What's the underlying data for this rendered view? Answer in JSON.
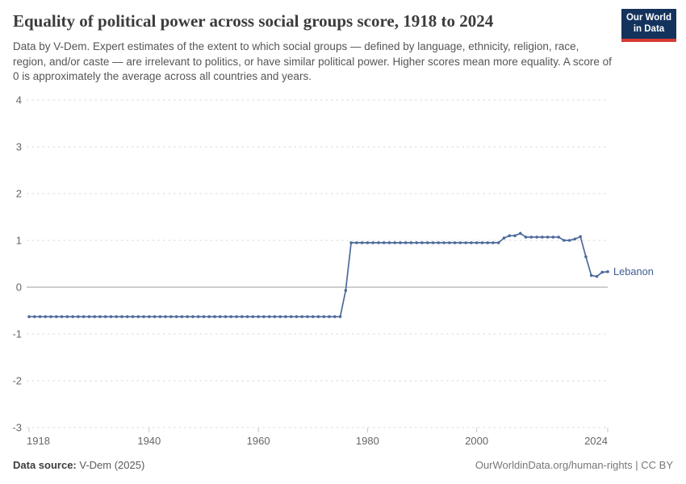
{
  "header": {
    "title": "Equality of political power across social groups score, 1918 to 2024",
    "subtitle": "Data by V-Dem. Expert estimates of the extent to which social groups — defined by language, ethnicity, religion, race, region, and/or caste — are irrelevant to politics, or have similar political power. Higher scores mean more equality. A score of 0 is approximately the average across all countries and years."
  },
  "logo": {
    "line1": "Our World",
    "line2": "in Data",
    "bg_color": "#14335c",
    "bar_color": "#d73b33"
  },
  "chart_data": {
    "type": "line",
    "title": "Equality of political power across social groups score, 1918 to 2024",
    "xlabel": "",
    "ylabel": "",
    "x_range": [
      1918,
      2024
    ],
    "ylim": [
      -3,
      4
    ],
    "y_ticks": [
      4,
      3,
      2,
      1,
      0,
      -1,
      -2,
      -3
    ],
    "x_ticks": [
      1918,
      1940,
      1960,
      1980,
      2000,
      2024
    ],
    "grid": "horizontal dashed, solid zero line",
    "legend_position": "end-of-line label",
    "marker": "dot every year",
    "series": [
      {
        "name": "Lebanon",
        "color": "#4c6a9c",
        "label_color": "#3d5c94",
        "x_start": 1918,
        "values": [
          -0.63,
          -0.63,
          -0.63,
          -0.63,
          -0.63,
          -0.63,
          -0.63,
          -0.63,
          -0.63,
          -0.63,
          -0.63,
          -0.63,
          -0.63,
          -0.63,
          -0.63,
          -0.63,
          -0.63,
          -0.63,
          -0.63,
          -0.63,
          -0.63,
          -0.63,
          -0.63,
          -0.63,
          -0.63,
          -0.63,
          -0.63,
          -0.63,
          -0.63,
          -0.63,
          -0.63,
          -0.63,
          -0.63,
          -0.63,
          -0.63,
          -0.63,
          -0.63,
          -0.63,
          -0.63,
          -0.63,
          -0.63,
          -0.63,
          -0.63,
          -0.63,
          -0.63,
          -0.63,
          -0.63,
          -0.63,
          -0.63,
          -0.63,
          -0.63,
          -0.63,
          -0.63,
          -0.63,
          -0.63,
          -0.63,
          -0.63,
          -0.63,
          -0.07,
          0.95,
          0.95,
          0.95,
          0.95,
          0.95,
          0.95,
          0.95,
          0.95,
          0.95,
          0.95,
          0.95,
          0.95,
          0.95,
          0.95,
          0.95,
          0.95,
          0.95,
          0.95,
          0.95,
          0.95,
          0.95,
          0.95,
          0.95,
          0.95,
          0.95,
          0.95,
          0.95,
          0.95,
          1.05,
          1.1,
          1.1,
          1.15,
          1.07,
          1.07,
          1.07,
          1.07,
          1.07,
          1.07,
          1.07,
          1.0,
          1.0,
          1.03,
          1.08,
          0.65,
          0.25,
          0.23,
          0.32,
          0.33
        ]
      }
    ]
  },
  "footer": {
    "source_label": "Data source:",
    "source_value": " V-Dem (2025)",
    "credit": "OurWorldinData.org/human-rights | CC BY"
  },
  "colors": {
    "grid": "#d8d8d8",
    "zero_line": "#9e9e9e",
    "tick_label": "#666666",
    "axis_tick": "#c6cbce"
  }
}
